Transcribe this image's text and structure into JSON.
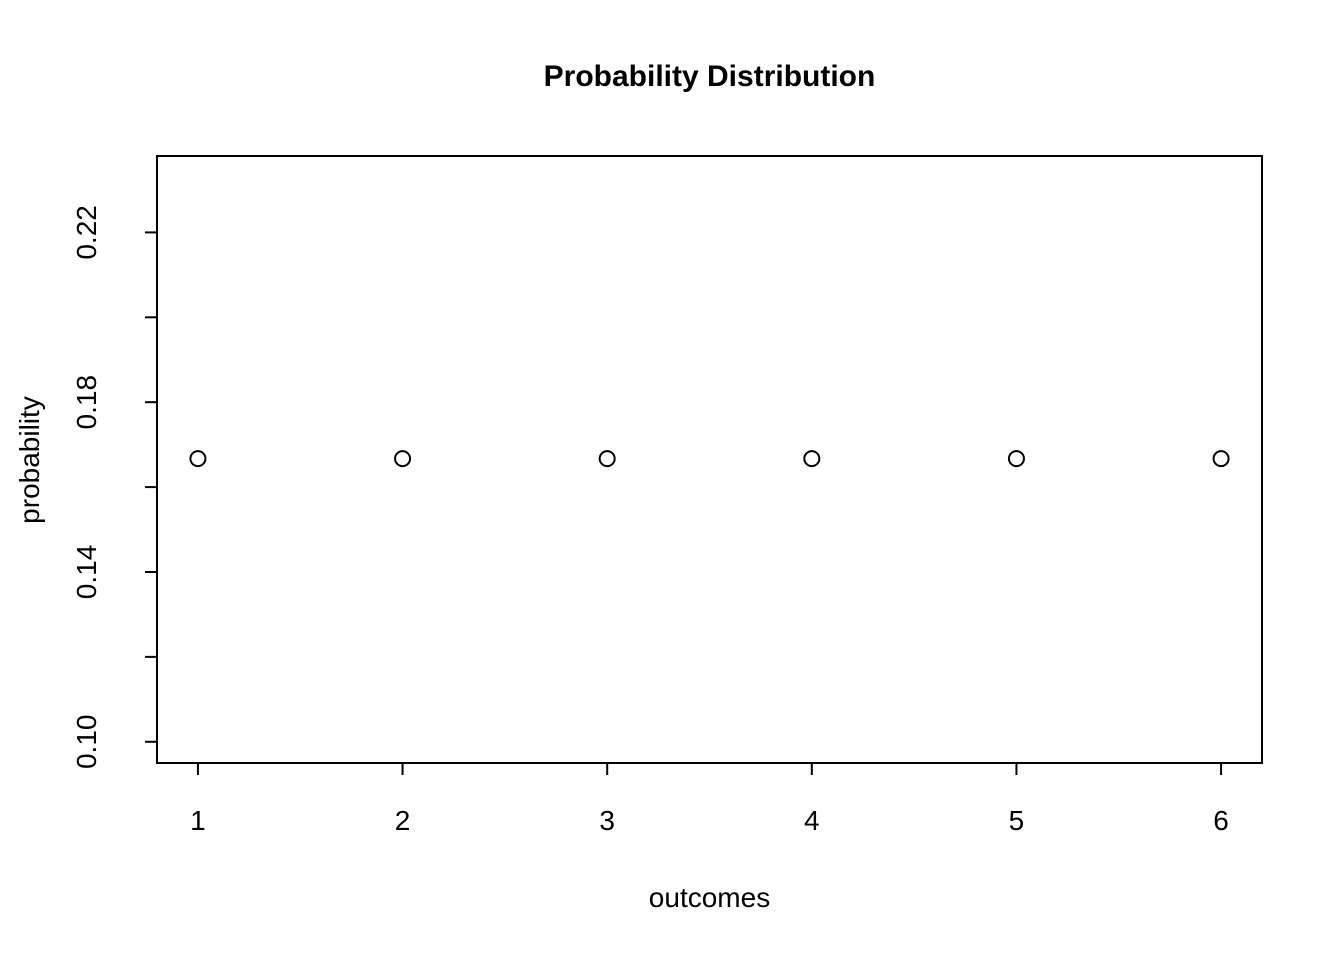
{
  "page": {
    "background_color": "#ffffff",
    "foreground_color": "#000000"
  },
  "chart_data": {
    "type": "scatter",
    "title": "Probability Distribution",
    "xlabel": "outcomes",
    "ylabel": "probability",
    "x": [
      1,
      2,
      3,
      4,
      5,
      6
    ],
    "y": [
      0.1667,
      0.1667,
      0.1667,
      0.1667,
      0.1667,
      0.1667
    ],
    "xlim": [
      0.8,
      6.2
    ],
    "ylim": [
      0.095,
      0.238
    ],
    "x_ticks": {
      "values": [
        1,
        2,
        3,
        4,
        5,
        6
      ],
      "labels": [
        "1",
        "2",
        "3",
        "4",
        "5",
        "6"
      ]
    },
    "y_ticks": {
      "values": [
        0.1,
        0.12,
        0.14,
        0.16,
        0.18,
        0.2,
        0.22
      ],
      "labels": [
        "0.10",
        "",
        "0.14",
        "",
        "0.18",
        "",
        "0.22"
      ]
    },
    "marker": {
      "shape": "open-circle",
      "radius_px": 7.5,
      "stroke": "#000000",
      "stroke_width_px": 2,
      "fill": "none"
    },
    "grid": false,
    "legend": null,
    "style": "r-base-plot"
  }
}
